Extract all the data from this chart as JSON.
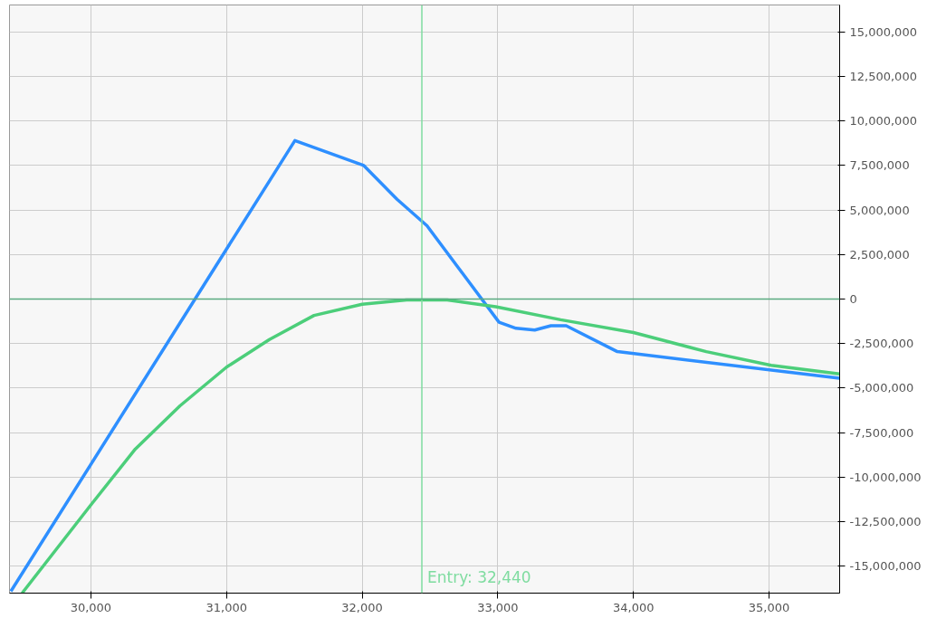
{
  "chart_data": {
    "type": "line",
    "series": [
      {
        "color": "#2e8fff",
        "x": [
          29410,
          31504,
          32012,
          32257,
          32478,
          33009,
          33134,
          33272,
          33391,
          33504,
          33881,
          35519
        ],
        "values": [
          -16400000,
          8890000,
          7490000,
          5600000,
          4110000,
          -1300000,
          -1640000,
          -1740000,
          -1500000,
          -1500000,
          -2950000,
          -4440000
        ]
      },
      {
        "color": "#4cce7a",
        "x": [
          29493,
          30000,
          30328,
          30657,
          31000,
          31316,
          31645,
          32000,
          32328,
          32627,
          32985,
          33463,
          34000,
          34537,
          35015,
          35519
        ],
        "values": [
          -16500000,
          -11550000,
          -8410000,
          -5990000,
          -3820000,
          -2270000,
          -920000,
          -290000,
          -50000,
          -50000,
          -430000,
          -1160000,
          -1880000,
          -2950000,
          -3720000,
          -4200000
        ]
      }
    ],
    "xlim": [
      29400,
      35520
    ],
    "ylim": [
      -16500000,
      16500000
    ],
    "xticks": [
      {
        "value": 30000,
        "label": "30,000"
      },
      {
        "value": 31000,
        "label": "31,000"
      },
      {
        "value": 32000,
        "label": "32,000"
      },
      {
        "value": 33000,
        "label": "33,000"
      },
      {
        "value": 34000,
        "label": "34,000"
      },
      {
        "value": 35000,
        "label": "35,000"
      }
    ],
    "yticks": [
      {
        "value": -15000000,
        "label": "-15,000,000"
      },
      {
        "value": -12500000,
        "label": "-12,500,000"
      },
      {
        "value": -10000000,
        "label": "-10,000,000"
      },
      {
        "value": -7500000,
        "label": "-7,500,000"
      },
      {
        "value": -5000000,
        "label": "-5,000,000"
      },
      {
        "value": -2500000,
        "label": "-2,500,000"
      },
      0,
      {
        "value": 2500000,
        "label": "2,500,000"
      },
      {
        "value": 5000000,
        "label": "5,000,000"
      },
      {
        "value": 7500000,
        "label": "7,500,000"
      },
      {
        "value": 10000000,
        "label": "10,000,000"
      },
      {
        "value": 12500000,
        "label": "12,500,000"
      },
      {
        "value": 15000000,
        "label": "15,000,000"
      }
    ],
    "grid": true,
    "ref_lines": [
      {
        "axis": "x",
        "value": 32440,
        "label": "Entry: 32,440",
        "color": "#7fdca0"
      },
      {
        "axis": "y",
        "value": 0,
        "color": "#5aaa80"
      }
    ]
  }
}
